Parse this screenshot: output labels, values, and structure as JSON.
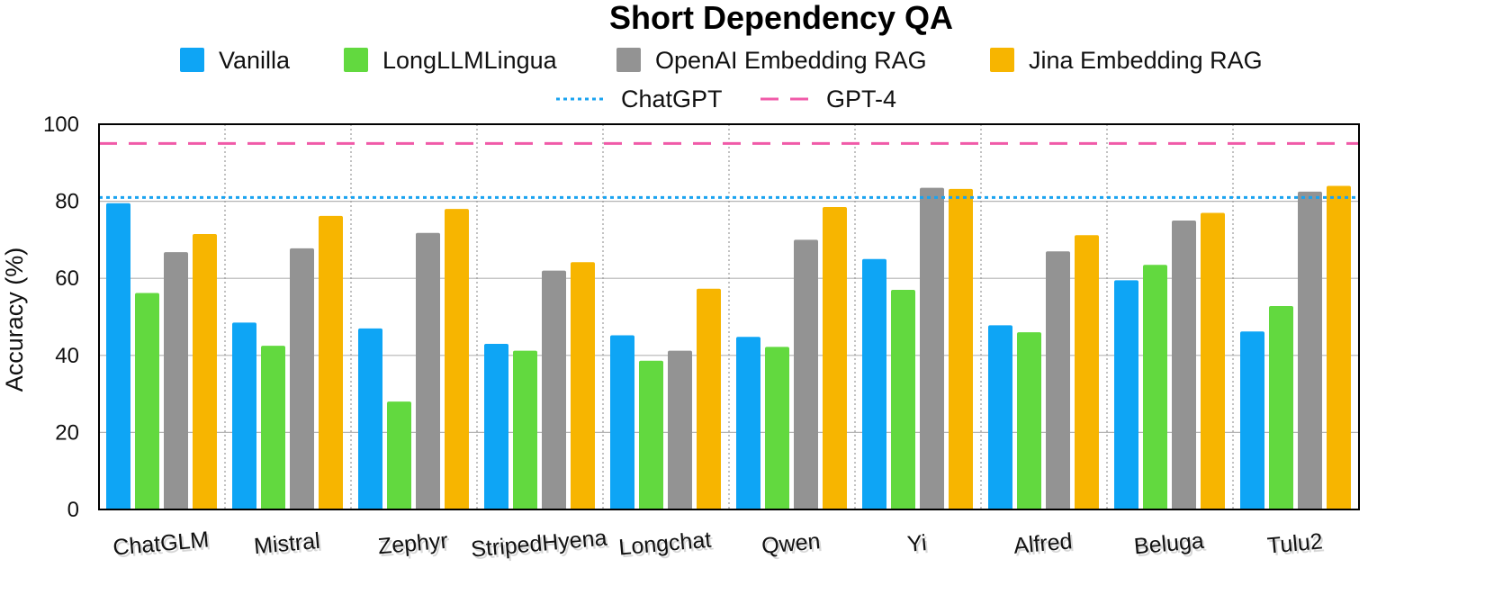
{
  "chart_data": {
    "type": "bar",
    "title": "Short Dependency QA",
    "xlabel": "",
    "ylabel": "Accuracy (%)",
    "ylim": [
      0,
      100
    ],
    "yticks": [
      0,
      20,
      40,
      60,
      80,
      100
    ],
    "grid": true,
    "legend_position": "top",
    "categories": [
      "ChatGLM",
      "Mistral",
      "Zephyr",
      "StripedHyena",
      "Longchat",
      "Qwen",
      "Yi",
      "Alfred",
      "Beluga",
      "Tulu2"
    ],
    "series": [
      {
        "name": "Vanilla",
        "color": "#0ea5f5",
        "values": [
          79.5,
          48.5,
          47.0,
          43.0,
          45.2,
          44.8,
          65.0,
          47.8,
          59.5,
          46.2
        ]
      },
      {
        "name": "LongLLMLingua",
        "color": "#62d93f",
        "values": [
          56.2,
          42.5,
          28.0,
          41.2,
          38.6,
          42.2,
          57.0,
          46.0,
          63.5,
          52.8
        ]
      },
      {
        "name": "OpenAI Embedding RAG",
        "color": "#939393",
        "values": [
          66.8,
          67.8,
          71.8,
          62.0,
          41.2,
          70.0,
          83.5,
          67.0,
          75.0,
          82.5
        ]
      },
      {
        "name": "Jina Embedding  RAG",
        "color": "#f7b500",
        "values": [
          71.5,
          76.2,
          78.0,
          64.2,
          57.3,
          78.5,
          83.2,
          71.2,
          77.0,
          84.0
        ]
      }
    ],
    "reference_lines": [
      {
        "name": "ChatGPT",
        "value": 81.0,
        "color": "#1aa3f0",
        "style": "dotted"
      },
      {
        "name": "GPT-4",
        "value": 95.0,
        "color": "#f05aa8",
        "style": "dashed"
      }
    ]
  }
}
